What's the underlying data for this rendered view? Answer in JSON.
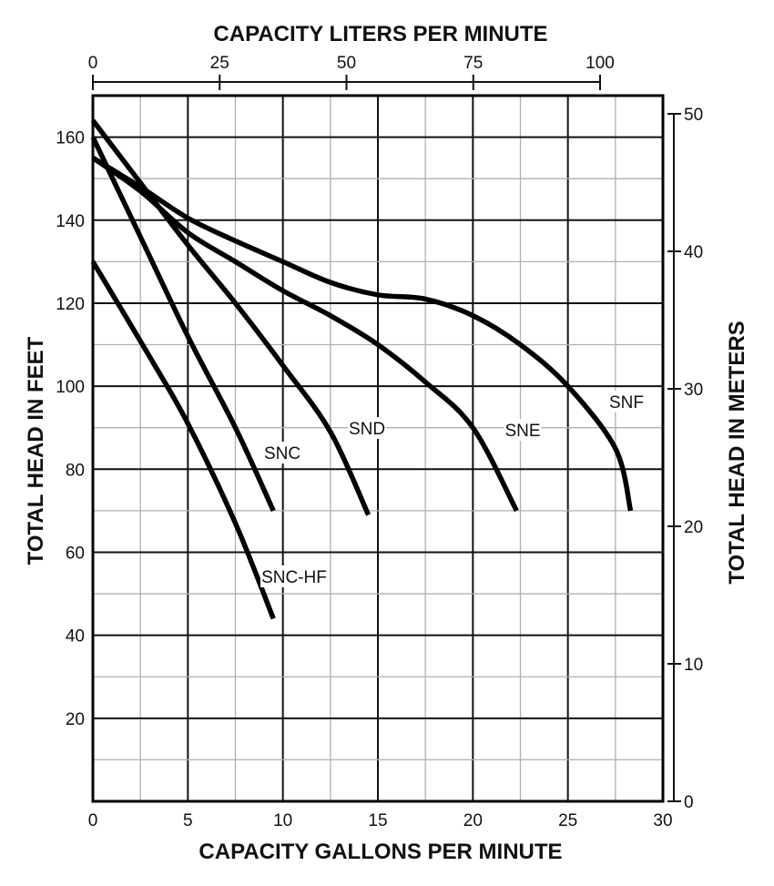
{
  "chart_data": {
    "type": "line",
    "top_axis_label": "CAPACITY LITERS PER MINUTE",
    "xlabel": "CAPACITY GALLONS PER MINUTE",
    "ylabel": "TOTAL HEAD IN FEET",
    "y2label": "TOTAL HEAD IN METERS",
    "xlim": [
      0,
      30
    ],
    "ylim": [
      0,
      170
    ],
    "y2lim": [
      0,
      50
    ],
    "top_lim": [
      0,
      100
    ],
    "x_ticks": [
      0,
      5,
      10,
      15,
      20,
      25,
      30
    ],
    "y_ticks": [
      20,
      40,
      60,
      80,
      100,
      120,
      140,
      160
    ],
    "y2_ticks": [
      0,
      10,
      20,
      30,
      40,
      50
    ],
    "top_ticks": [
      0,
      25,
      50,
      75,
      100
    ],
    "grid": true,
    "line_color": "#000000",
    "series": [
      {
        "name": "SNC-HF",
        "x": [
          0,
          3,
          5,
          7.5,
          9.5
        ],
        "y": [
          130,
          107,
          91,
          67,
          44
        ]
      },
      {
        "name": "SNC",
        "x": [
          0,
          2.5,
          5,
          7.5,
          9.5
        ],
        "y": [
          160,
          136,
          112,
          90,
          70
        ]
      },
      {
        "name": "SND",
        "x": [
          0,
          2.5,
          5,
          7.5,
          10,
          12.5,
          14.5
        ],
        "y": [
          164,
          149,
          134,
          120,
          105,
          89,
          69
        ]
      },
      {
        "name": "SNE",
        "x": [
          0,
          2.5,
          5,
          7.5,
          10,
          12.5,
          15,
          17.5,
          20,
          22.3
        ],
        "y": [
          155,
          147,
          137,
          130,
          123,
          117,
          110,
          101,
          90,
          70
        ]
      },
      {
        "name": "SNF",
        "x": [
          0,
          2.5,
          5,
          7.5,
          10,
          12.5,
          15,
          17.5,
          20,
          22.5,
          25,
          27.5,
          28.3
        ],
        "y": [
          155,
          148,
          140.5,
          135,
          130,
          125,
          122,
          121,
          117,
          110,
          100,
          85,
          70
        ]
      }
    ]
  }
}
